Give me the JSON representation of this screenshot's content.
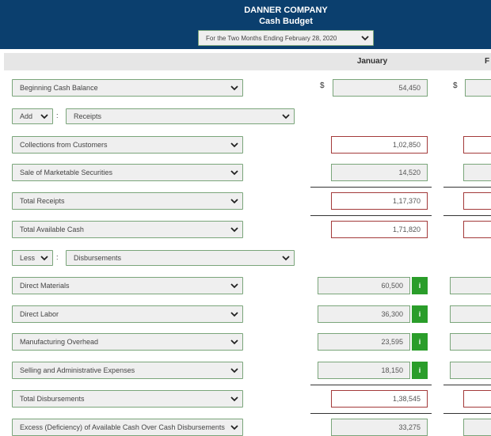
{
  "header": {
    "company": "DANNER COMPANY",
    "title": "Cash Budget",
    "period": "For the Two Months Ending February 28, 2020"
  },
  "columns": [
    "January",
    "F"
  ],
  "currency": "$",
  "info_label": "i",
  "rows": [
    {
      "label": "Beginning Cash Balance",
      "value": "54,450"
    },
    {
      "prefix": "Add",
      "label": "Receipts"
    },
    {
      "label": "Collections from Customers",
      "value": "1,02,850"
    },
    {
      "label": "Sale of Marketable Securities",
      "value": "14,520"
    },
    {
      "label": "Total Receipts",
      "value": "1,17,370"
    },
    {
      "label": "Total Available Cash",
      "value": "1,71,820"
    },
    {
      "prefix": "Less",
      "label": "Disbursements"
    },
    {
      "label": "Direct Materials",
      "value": "60,500"
    },
    {
      "label": "Direct Labor",
      "value": "36,300"
    },
    {
      "label": "Manufacturing Overhead",
      "value": "23,595"
    },
    {
      "label": "Selling and Administrative Expenses",
      "value": "18,150"
    },
    {
      "label": "Total Disbursements",
      "value": "1,38,545"
    },
    {
      "label": "Excess (Deficiency) of Available Cash Over Cash Disbursements",
      "value": "33,275"
    }
  ]
}
